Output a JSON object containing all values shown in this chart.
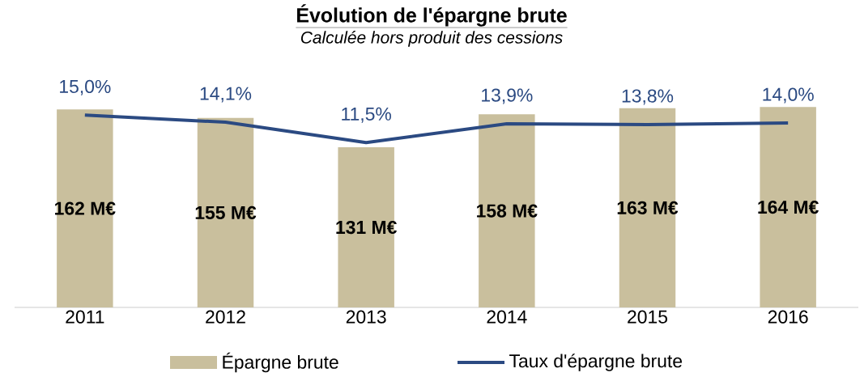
{
  "chart_data": {
    "type": "bar",
    "title": "Évolution de l'épargne brute",
    "subtitle": "Calculée hors produit des cessions",
    "categories": [
      "2011",
      "2012",
      "2013",
      "2014",
      "2015",
      "2016"
    ],
    "legend": "bottom",
    "series": [
      {
        "name": "Épargne brute",
        "color": "#c9bf9d",
        "values": [
          162,
          155,
          131,
          158,
          163,
          164
        ],
        "value_labels": [
          "162 M€",
          "155 M€",
          "131 M€",
          "158 M€",
          "163 M€",
          "164 M€"
        ]
      },
      {
        "name": "Taux d'épargne brute",
        "type": "line",
        "axis": "y2",
        "color": "#2b4a82",
        "values": [
          15.0,
          14.1,
          11.5,
          13.9,
          13.8,
          14.0
        ],
        "value_labels": [
          "15,0%",
          "14,1%",
          "11,5%",
          "13,9%",
          "13,8%",
          "14,0%"
        ]
      }
    ]
  }
}
